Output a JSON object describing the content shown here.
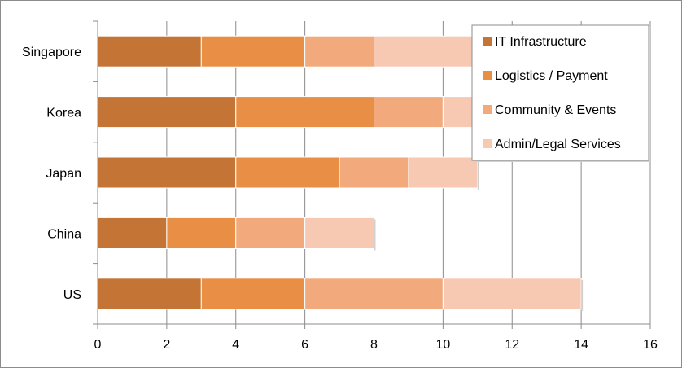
{
  "chart_data": {
    "type": "bar",
    "orientation": "horizontal",
    "stacked": true,
    "title": "",
    "xlabel": "",
    "ylabel": "",
    "xlim": [
      0,
      16
    ],
    "x_ticks": [
      0,
      2,
      4,
      6,
      8,
      10,
      12,
      14,
      16
    ],
    "grid": "vertical gridlines",
    "legend_position": "top-right",
    "categories": [
      "Singapore",
      "Korea",
      "Japan",
      "China",
      "US"
    ],
    "series": [
      {
        "name": "IT Infrastructure",
        "color": "#c47535",
        "values": [
          3,
          4,
          4,
          2,
          3
        ]
      },
      {
        "name": "Logistics / Payment",
        "color": "#e88f45",
        "values": [
          3,
          4,
          3,
          2,
          3
        ]
      },
      {
        "name": "Community & Events",
        "color": "#f2aa7c",
        "values": [
          2,
          2,
          2,
          2,
          4
        ]
      },
      {
        "name": "Admin/Legal Services",
        "color": "#f7c9b3",
        "values": [
          3,
          2,
          2,
          2,
          4
        ]
      }
    ]
  }
}
